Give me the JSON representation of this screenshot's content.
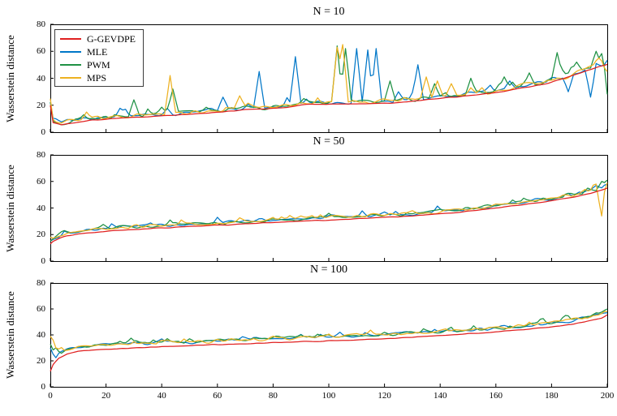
{
  "figure": {
    "background": "#ffffff",
    "axis_color": "#000000",
    "text_color": "#000000"
  },
  "chart_data": [
    {
      "type": "line",
      "title": "N = 10",
      "xlabel": "",
      "ylabel": "Wasserstein distance",
      "xlim": [
        0,
        200
      ],
      "ylim": [
        0,
        80
      ],
      "xticks": [
        0,
        20,
        40,
        60,
        80,
        100,
        120,
        140,
        160,
        180,
        200
      ],
      "yticks": [
        0,
        20,
        40,
        60,
        80
      ],
      "show_xtick_labels": false,
      "legend_position": "top-left",
      "base_anchors": [
        [
          0,
          20
        ],
        [
          1,
          7
        ],
        [
          4,
          5.5
        ],
        [
          8,
          7
        ],
        [
          15,
          9
        ],
        [
          25,
          10.5
        ],
        [
          40,
          12
        ],
        [
          55,
          14
        ],
        [
          70,
          16.5
        ],
        [
          85,
          18.5
        ],
        [
          92,
          20.5
        ],
        [
          122,
          21.5
        ],
        [
          135,
          24
        ],
        [
          150,
          27
        ],
        [
          160,
          29.5
        ],
        [
          170,
          33
        ],
        [
          178,
          36
        ],
        [
          186,
          41
        ],
        [
          193,
          46
        ],
        [
          198,
          49
        ],
        [
          200,
          50
        ]
      ],
      "series": [
        {
          "name": "G-GEVDPE",
          "color": "#e02020",
          "offset": 0,
          "noise_amp": 0.3,
          "seed": 101,
          "rand_spike_prob": 0,
          "rand_spike_mag": 0,
          "spikes": []
        },
        {
          "name": "MLE",
          "color": "#0077c8",
          "offset": 1.5,
          "noise_amp": 1.9,
          "seed": 102,
          "rand_spike_prob": 0.05,
          "rand_spike_mag": 6,
          "spikes": [
            [
              62,
              26
            ],
            [
              75,
              45
            ],
            [
              88,
              56
            ],
            [
              110,
              62
            ],
            [
              114,
              61
            ],
            [
              117,
              62
            ],
            [
              125,
              30
            ],
            [
              132,
              50
            ],
            [
              165,
              38
            ],
            [
              186,
              30
            ],
            [
              194,
              26
            ]
          ]
        },
        {
          "name": "PWM",
          "color": "#1f9144",
          "offset": 1.5,
          "noise_amp": 1.9,
          "seed": 103,
          "rand_spike_prob": 0.05,
          "rand_spike_mag": 5,
          "spikes": [
            [
              30,
              24
            ],
            [
              44,
              32
            ],
            [
              103,
              64
            ],
            [
              106,
              62
            ],
            [
              122,
              38
            ],
            [
              138,
              36
            ],
            [
              151,
              40
            ],
            [
              163,
              41
            ],
            [
              172,
              44
            ],
            [
              182,
              59
            ],
            [
              189,
              52
            ],
            [
              196,
              60
            ],
            [
              199,
              67
            ],
            [
              200,
              28
            ]
          ]
        },
        {
          "name": "MPS",
          "color": "#edb120",
          "offset": 1.5,
          "noise_amp": 1.9,
          "seed": 104,
          "rand_spike_prob": 0.05,
          "rand_spike_mag": 5,
          "spikes": [
            [
              43,
              42
            ],
            [
              68,
              27
            ],
            [
              103,
              63
            ],
            [
              105,
              65
            ],
            [
              135,
              41
            ],
            [
              139,
              38
            ],
            [
              144,
              36
            ],
            [
              155,
              33
            ],
            [
              197,
              55
            ],
            [
              200,
              45
            ]
          ]
        }
      ]
    },
    {
      "type": "line",
      "title": "N = 50",
      "xlabel": "",
      "ylabel": "Wasserstein distance",
      "xlim": [
        0,
        200
      ],
      "ylim": [
        0,
        80
      ],
      "xticks": [
        0,
        20,
        40,
        60,
        80,
        100,
        120,
        140,
        160,
        180,
        200
      ],
      "yticks": [
        0,
        20,
        40,
        60,
        80
      ],
      "show_xtick_labels": false,
      "base_anchors": [
        [
          0,
          13
        ],
        [
          1,
          15
        ],
        [
          3,
          17
        ],
        [
          6,
          19
        ],
        [
          10,
          20.5
        ],
        [
          20,
          22.5
        ],
        [
          35,
          24.5
        ],
        [
          50,
          26
        ],
        [
          70,
          28
        ],
        [
          90,
          30
        ],
        [
          110,
          32
        ],
        [
          130,
          34
        ],
        [
          145,
          36.5
        ],
        [
          160,
          40
        ],
        [
          170,
          42.5
        ],
        [
          180,
          45.5
        ],
        [
          188,
          48
        ],
        [
          194,
          51
        ],
        [
          198,
          53.5
        ],
        [
          200,
          55
        ]
      ],
      "series": [
        {
          "name": "G-GEVDPE",
          "color": "#e02020",
          "offset": 0,
          "noise_amp": 0.3,
          "seed": 201,
          "rand_spike_prob": 0,
          "rand_spike_mag": 0,
          "spikes": []
        },
        {
          "name": "MLE",
          "color": "#0077c8",
          "offset": 1.8,
          "noise_amp": 1.5,
          "seed": 202,
          "rand_spike_prob": 0.04,
          "rand_spike_mag": 3.5,
          "spikes": [
            [
              60,
              33
            ],
            [
              120,
              37
            ],
            [
              150,
              39
            ],
            [
              178,
              46
            ],
            [
              190,
              52
            ],
            [
              196,
              57
            ],
            [
              200,
              58
            ]
          ]
        },
        {
          "name": "PWM",
          "color": "#1f9144",
          "offset": 1.8,
          "noise_amp": 1.5,
          "seed": 203,
          "rand_spike_prob": 0.04,
          "rand_spike_mag": 3.5,
          "spikes": [
            [
              5,
              23
            ],
            [
              45,
              29
            ],
            [
              100,
              36
            ],
            [
              140,
              39
            ],
            [
              168,
              45
            ],
            [
              186,
              51
            ],
            [
              193,
              55
            ],
            [
              198,
              60
            ],
            [
              200,
              61
            ]
          ]
        },
        {
          "name": "MPS",
          "color": "#edb120",
          "offset": 1.8,
          "noise_amp": 1.5,
          "seed": 204,
          "rand_spike_prob": 0.04,
          "rand_spike_mag": 3.5,
          "spikes": [
            [
              0,
              18
            ],
            [
              30,
              27
            ],
            [
              90,
              34
            ],
            [
              130,
              38
            ],
            [
              160,
              43
            ],
            [
              185,
              50
            ],
            [
              192,
              54
            ],
            [
              196,
              58
            ],
            [
              198,
              34
            ],
            [
              200,
              59
            ]
          ]
        }
      ]
    },
    {
      "type": "line",
      "title": "N = 100",
      "xlabel": "",
      "ylabel": "Wasserstein distance",
      "xlim": [
        0,
        200
      ],
      "ylim": [
        0,
        80
      ],
      "xticks": [
        0,
        20,
        40,
        60,
        80,
        100,
        120,
        140,
        160,
        180,
        200
      ],
      "yticks": [
        0,
        20,
        40,
        60,
        80
      ],
      "show_xtick_labels": true,
      "base_anchors": [
        [
          0,
          12
        ],
        [
          1,
          17
        ],
        [
          3,
          22
        ],
        [
          6,
          25.5
        ],
        [
          10,
          27.5
        ],
        [
          20,
          29
        ],
        [
          40,
          31
        ],
        [
          60,
          32.5
        ],
        [
          80,
          34
        ],
        [
          100,
          35.5
        ],
        [
          120,
          37
        ],
        [
          140,
          39.5
        ],
        [
          155,
          41.5
        ],
        [
          170,
          44
        ],
        [
          180,
          46
        ],
        [
          188,
          48.5
        ],
        [
          194,
          51
        ],
        [
          198,
          53
        ],
        [
          200,
          55
        ]
      ],
      "series": [
        {
          "name": "G-GEVDPE",
          "color": "#e02020",
          "offset": 0,
          "noise_amp": 0.3,
          "seed": 301,
          "rand_spike_prob": 0,
          "rand_spike_mag": 0,
          "spikes": []
        },
        {
          "name": "MLE",
          "color": "#0077c8",
          "offset": 3.2,
          "noise_amp": 1.5,
          "seed": 302,
          "rand_spike_prob": 0.04,
          "rand_spike_mag": 3.5,
          "spikes": [
            [
              0,
              30
            ],
            [
              70,
              38
            ],
            [
              130,
              42
            ],
            [
              180,
              50
            ],
            [
              196,
              56
            ],
            [
              200,
              57
            ]
          ]
        },
        {
          "name": "PWM",
          "color": "#1f9144",
          "offset": 3.2,
          "noise_amp": 1.5,
          "seed": 303,
          "rand_spike_prob": 0.04,
          "rand_spike_mag": 3.5,
          "spikes": [
            [
              0,
              33
            ],
            [
              2,
              30
            ],
            [
              50,
              37
            ],
            [
              90,
              40
            ],
            [
              120,
              42
            ],
            [
              150,
              44
            ],
            [
              185,
              55
            ],
            [
              189,
              53
            ],
            [
              196,
              57
            ],
            [
              200,
              60
            ]
          ]
        },
        {
          "name": "MPS",
          "color": "#edb120",
          "offset": 3.2,
          "noise_amp": 1.5,
          "seed": 304,
          "rand_spike_prob": 0.04,
          "rand_spike_mag": 3.5,
          "spikes": [
            [
              0,
              42
            ],
            [
              1,
              36
            ],
            [
              40,
              36
            ],
            [
              80,
              39
            ],
            [
              110,
              41
            ],
            [
              145,
              44
            ],
            [
              170,
              47
            ],
            [
              186,
              52
            ],
            [
              193,
              53
            ],
            [
              200,
              58
            ]
          ]
        }
      ]
    }
  ]
}
